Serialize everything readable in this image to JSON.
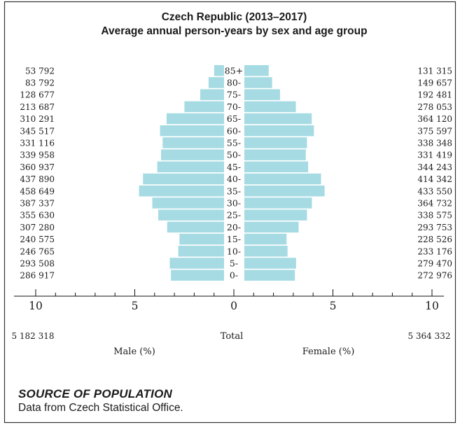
{
  "title": "Czech Republic (2013–2017)",
  "subtitle": "Average annual person-years by sex and age group",
  "source": {
    "heading": "SOURCE OF POPULATION",
    "text": "Data from Czech Statistical Office."
  },
  "colors": {
    "bar": "#a6dbe3",
    "border": "#333333",
    "text": "#1a1a1a"
  },
  "chart_data": {
    "type": "bar",
    "orientation": "horizontal-population-pyramid",
    "categories": [
      "85+",
      "80-",
      "75-",
      "70-",
      "65-",
      "60-",
      "55-",
      "50-",
      "45-",
      "40-",
      "35-",
      "30-",
      "25-",
      "20-",
      "15-",
      "10-",
      "5-",
      "0-"
    ],
    "series": [
      {
        "name": "Male (%)",
        "side": "left",
        "counts": [
          "53 792",
          "83 792",
          "128 677",
          "213 687",
          "310 291",
          "345 517",
          "331 116",
          "339 958",
          "360 937",
          "437 890",
          "458 649",
          "387 337",
          "355 630",
          "307 280",
          "240 575",
          "246 765",
          "293 508",
          "286 917"
        ],
        "values": [
          0.5,
          0.78,
          1.2,
          2.0,
          2.9,
          3.23,
          3.1,
          3.18,
          3.37,
          4.09,
          4.29,
          3.62,
          3.32,
          2.87,
          2.25,
          2.31,
          2.74,
          2.68
        ],
        "total": "5 182 318"
      },
      {
        "name": "Female (%)",
        "side": "right",
        "counts": [
          "131 315",
          "149 657",
          "192 481",
          "278 053",
          "364 120",
          "375 597",
          "338 348",
          "331 419",
          "344 243",
          "414 342",
          "433 550",
          "364 732",
          "338 575",
          "293 753",
          "228 526",
          "233 176",
          "279 470",
          "272 976"
        ],
        "values": [
          1.23,
          1.4,
          1.8,
          2.6,
          3.4,
          3.51,
          3.16,
          3.1,
          3.22,
          3.87,
          4.05,
          3.41,
          3.16,
          2.74,
          2.13,
          2.18,
          2.61,
          2.55
        ],
        "total": "5 364 332"
      }
    ],
    "total_label": "Total",
    "xlabel_left": "Male (%)",
    "xlabel_right": "Female (%)",
    "xlim": [
      0,
      10
    ],
    "xticks": [
      "10",
      "5",
      "0",
      "5",
      "10"
    ],
    "grid": false,
    "legend": "none"
  }
}
